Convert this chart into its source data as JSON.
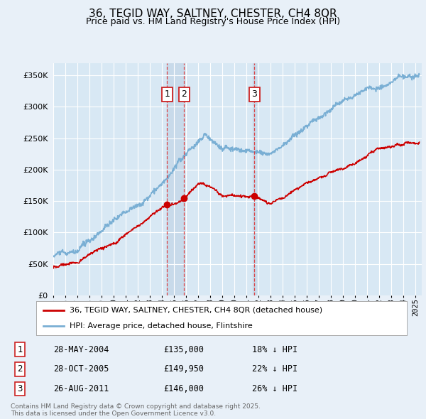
{
  "title": "36, TEGID WAY, SALTNEY, CHESTER, CH4 8QR",
  "subtitle": "Price paid vs. HM Land Registry's House Price Index (HPI)",
  "ylim": [
    0,
    370000
  ],
  "xlim_start": 1995.0,
  "xlim_end": 2025.5,
  "legend_label_red": "36, TEGID WAY, SALTNEY, CHESTER, CH4 8QR (detached house)",
  "legend_label_blue": "HPI: Average price, detached house, Flintshire",
  "transactions": [
    {
      "num": 1,
      "date": "28-MAY-2004",
      "price": 135000,
      "price_str": "£135,000",
      "pct": "18%",
      "x": 2004.41
    },
    {
      "num": 2,
      "date": "28-OCT-2005",
      "price": 149950,
      "price_str": "£149,950",
      "pct": "22%",
      "x": 2005.83
    },
    {
      "num": 3,
      "date": "26-AUG-2011",
      "price": 146000,
      "price_str": "£146,000",
      "pct": "26%",
      "x": 2011.65
    }
  ],
  "footer": "Contains HM Land Registry data © Crown copyright and database right 2025.\nThis data is licensed under the Open Government Licence v3.0.",
  "background_color": "#e8f0f8",
  "plot_background": "#d8e8f4",
  "red_color": "#cc0000",
  "blue_color": "#7aafd4",
  "grid_color": "#ffffff",
  "highlight_color": "#c8daea"
}
